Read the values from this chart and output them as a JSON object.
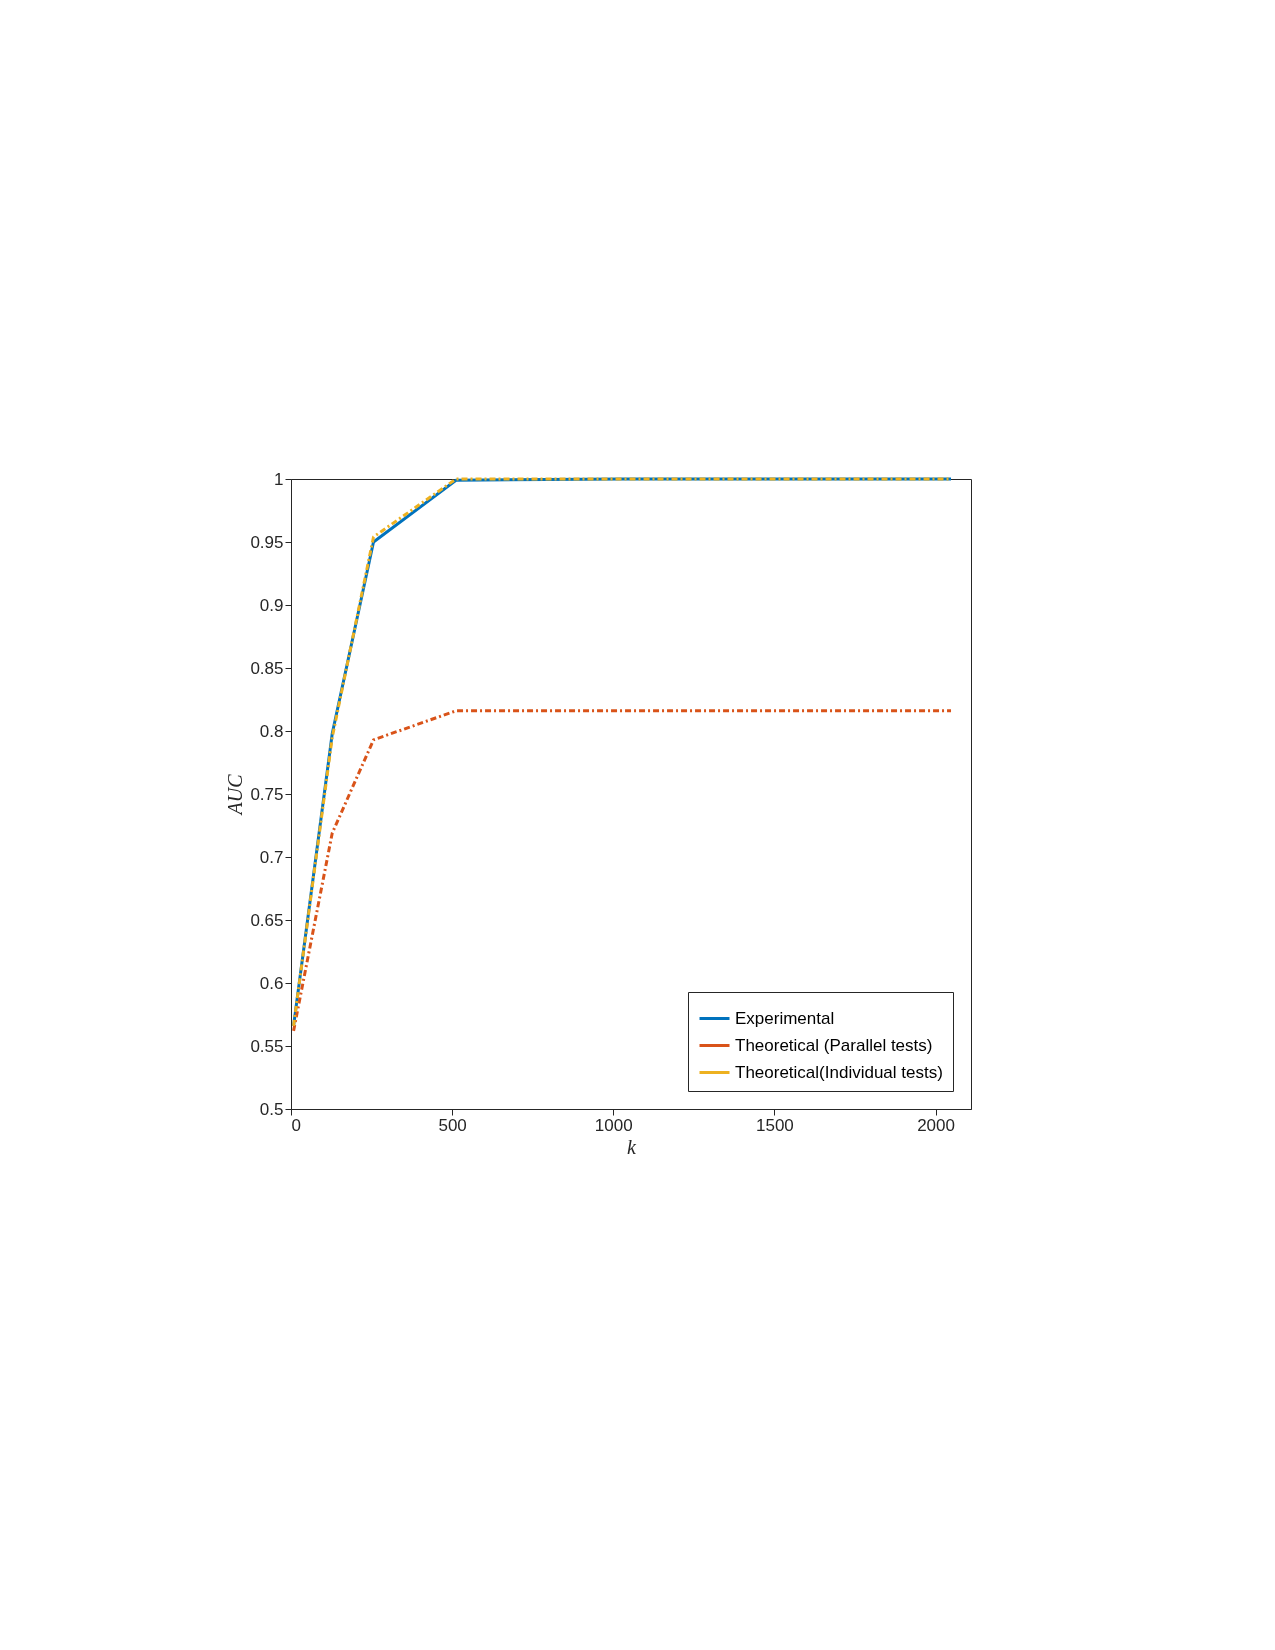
{
  "chart_data": {
    "type": "line",
    "xlabel": "k",
    "ylabel": "AUC",
    "x": [
      8,
      128,
      256,
      512,
      1024,
      2048
    ],
    "series": [
      {
        "name": "Experimental",
        "color": "#0072bd",
        "line_style": "solid",
        "values": [
          0.566,
          0.798,
          0.95,
          0.999,
          1.0,
          1.0
        ]
      },
      {
        "name": "Theoretical (Parallel tests)",
        "color": "#d95319",
        "line_style": "dashed",
        "values": [
          0.562,
          0.719,
          0.793,
          0.816,
          0.816,
          0.816
        ]
      },
      {
        "name": "Theoretical(Individual tests)",
        "color": "#edb120",
        "line_style": "dashed",
        "values": [
          0.566,
          0.795,
          0.954,
          1.0,
          1.0,
          1.0
        ]
      }
    ],
    "xlim": [
      0,
      2110
    ],
    "xticks": [
      0,
      500,
      1000,
      1500,
      2000
    ],
    "ylim": [
      0.5,
      1
    ],
    "yticks": [
      0.5,
      0.55,
      0.6,
      0.65,
      0.7,
      0.75,
      0.8,
      0.85,
      0.9,
      0.95,
      1
    ],
    "grid": false,
    "legend": "bottom right",
    "marker": "none"
  }
}
